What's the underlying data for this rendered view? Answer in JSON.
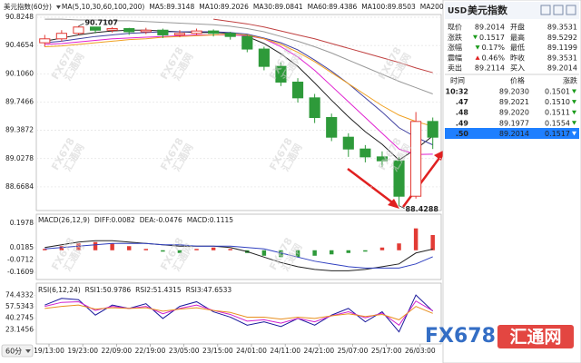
{
  "chart_data": [
    {
      "type": "candlestick",
      "title": "美元指数(60分)",
      "indicator": "MA(5,10,30,60,100,200)",
      "ylim": [
        88.368,
        90.859
      ],
      "yticks": [
        90.8248,
        90.4654,
        {
          "value": 90.106,
          "label": "90.1060"
        },
        89.7466,
        89.3872,
        89.0278,
        88.6684
      ],
      "grid": true,
      "up_color": "#e23b35",
      "down_color": "#2e9a3a",
      "open": [
        90.5,
        90.55,
        90.62,
        90.7,
        90.66,
        90.68,
        90.64,
        90.66,
        90.6,
        90.62,
        90.65,
        90.62,
        90.58,
        90.42,
        90.2,
        90.0,
        89.8,
        89.55,
        89.3,
        89.15,
        89.05,
        89.0,
        88.55,
        89.5
      ],
      "high": [
        90.6,
        90.66,
        90.7107,
        90.7,
        90.7,
        90.69,
        90.69,
        90.68,
        90.66,
        90.68,
        90.67,
        90.64,
        90.6,
        90.45,
        90.25,
        90.05,
        89.85,
        89.6,
        89.35,
        89.2,
        89.12,
        89.05,
        89.62,
        89.55
      ],
      "low": [
        90.45,
        90.52,
        90.6,
        90.62,
        90.63,
        90.6,
        90.61,
        90.56,
        90.57,
        90.6,
        90.58,
        90.54,
        90.38,
        90.15,
        89.95,
        89.74,
        89.48,
        89.25,
        89.05,
        88.98,
        88.92,
        88.4288,
        88.52,
        89.15
      ],
      "close": [
        90.55,
        90.62,
        90.7,
        90.66,
        90.68,
        90.64,
        90.66,
        90.6,
        90.62,
        90.65,
        90.62,
        90.58,
        90.42,
        90.2,
        90.0,
        89.8,
        89.55,
        89.3,
        89.15,
        89.05,
        89.0,
        88.55,
        89.5,
        89.3
      ],
      "annotations": {
        "high_label": "90.7107",
        "low_label": "88.4288"
      },
      "series": [
        {
          "label": "MA5:89.3148",
          "color": "#222222",
          "values": [
            90.52,
            90.56,
            90.6,
            90.63,
            90.65,
            90.66,
            90.66,
            90.65,
            90.64,
            90.63,
            90.63,
            90.62,
            90.58,
            90.49,
            90.36,
            90.2,
            89.99,
            89.77,
            89.56,
            89.37,
            89.21,
            89.01,
            89.15,
            89.3148
          ]
        },
        {
          "label": "MA10:89.2026",
          "color": "#4040a0",
          "values": [
            90.5,
            90.52,
            90.55,
            90.58,
            90.6,
            90.62,
            90.63,
            90.64,
            90.64,
            90.64,
            90.64,
            90.63,
            90.61,
            90.56,
            90.5,
            90.41,
            90.28,
            90.14,
            89.98,
            89.8,
            89.62,
            89.42,
            89.3,
            89.2026
          ]
        },
        {
          "label": "MA30:89.0841",
          "color": "#e020d0",
          "values": [
            90.48,
            90.49,
            90.51,
            90.53,
            90.55,
            90.56,
            90.57,
            90.58,
            90.59,
            90.6,
            90.6,
            90.6,
            90.59,
            90.55,
            90.45,
            90.32,
            90.15,
            89.95,
            89.75,
            89.55,
            89.35,
            89.15,
            89.08,
            89.0841
          ]
        },
        {
          "label": "MA60:89.4386",
          "color": "#f0a020",
          "values": [
            90.45,
            90.46,
            90.48,
            90.5,
            90.52,
            90.54,
            90.55,
            90.57,
            90.58,
            90.59,
            90.6,
            90.61,
            90.6,
            90.55,
            90.48,
            90.38,
            90.26,
            90.12,
            89.98,
            89.84,
            89.7,
            89.58,
            89.5,
            89.4386
          ]
        },
        {
          "label": "MA100:89.8503",
          "color": "#999999",
          "values": [
            90.8,
            90.8,
            90.79,
            90.79,
            90.78,
            90.78,
            90.77,
            90.76,
            90.75,
            90.74,
            90.73,
            90.71,
            90.68,
            90.64,
            90.58,
            90.52,
            90.45,
            90.37,
            90.28,
            90.19,
            90.1,
            90.01,
            89.93,
            89.8503
          ]
        },
        {
          "label": "MA200",
          "color": "#c04040",
          "values": [
            null,
            null,
            null,
            null,
            null,
            null,
            null,
            null,
            null,
            null,
            90.8,
            90.77,
            90.74,
            90.7,
            90.65,
            90.6,
            90.55,
            90.49,
            90.43,
            90.37,
            90.31,
            90.25,
            90.18,
            90.12
          ]
        }
      ]
    },
    {
      "type": "macd",
      "title": "MACD(26,12,9)",
      "ylim": [
        -0.214,
        0.264
      ],
      "yticks": [
        0.1978,
        0.0185,
        -0.0712,
        -0.1609
      ],
      "histogram": {
        "label": "MACD:0.1115",
        "label_color": "#d020d0",
        "up_color": "#e23b35",
        "down_color": "#2e9a3a",
        "values": [
          0.01,
          0.03,
          0.05,
          0.06,
          0.05,
          0.03,
          0.01,
          -0.01,
          -0.02,
          0.01,
          0.02,
          0.01,
          -0.02,
          -0.04,
          -0.05,
          -0.05,
          -0.04,
          -0.03,
          -0.02,
          -0.01,
          0.02,
          0.05,
          0.16,
          0.1115
        ]
      },
      "series": [
        {
          "label": "DIFF:0.0082",
          "color": "#222222",
          "values": [
            0.02,
            0.04,
            0.06,
            0.07,
            0.07,
            0.06,
            0.05,
            0.04,
            0.03,
            0.03,
            0.03,
            0.02,
            -0.01,
            -0.05,
            -0.09,
            -0.12,
            -0.14,
            -0.15,
            -0.15,
            -0.14,
            -0.12,
            -0.1,
            -0.02,
            0.0082
          ]
        },
        {
          "label": "DEA:-0.0476",
          "color": "#3040c0",
          "values": [
            0.01,
            0.02,
            0.03,
            0.04,
            0.05,
            0.05,
            0.05,
            0.04,
            0.04,
            0.03,
            0.03,
            0.03,
            0.02,
            0.01,
            -0.02,
            -0.05,
            -0.08,
            -0.1,
            -0.12,
            -0.13,
            -0.13,
            -0.13,
            -0.1,
            -0.0476
          ]
        }
      ]
    },
    {
      "type": "line",
      "title": "RSI(6,12,24)",
      "ylim": [
        2,
        90
      ],
      "yticks": [
        74.4332,
        57.5343,
        40.2745,
        23.1456
      ],
      "x_labels": [
        "19/13:00",
        "19/23:00",
        "22/09:00",
        "22/19:00",
        "23/05:00",
        "23/15:00",
        "24/01:00",
        "24/11:00",
        "24/21:00",
        "25/07:00",
        "25/17:00",
        "26/03:00"
      ],
      "series": [
        {
          "label": "RSI1:50.9786",
          "color": "#1a1a9c",
          "values": [
            60,
            70,
            68,
            45,
            60,
            55,
            62,
            40,
            58,
            65,
            50,
            42,
            30,
            35,
            28,
            40,
            30,
            45,
            55,
            35,
            50,
            20,
            75,
            50.9786
          ]
        },
        {
          "label": "RSI2:51.4315",
          "color": "#d020d0",
          "values": [
            58,
            64,
            65,
            52,
            58,
            55,
            58,
            47,
            55,
            60,
            52,
            46,
            36,
            38,
            33,
            40,
            35,
            44,
            50,
            41,
            48,
            30,
            66,
            51.4315
          ]
        },
        {
          "label": "RSI3:47.6533",
          "color": "#e89020",
          "values": [
            55,
            58,
            60,
            54,
            56,
            55,
            56,
            51,
            54,
            56,
            52,
            49,
            42,
            42,
            39,
            42,
            40,
            44,
            47,
            43,
            46,
            38,
            58,
            47.6533
          ]
        }
      ]
    }
  ],
  "period_selector": "60分",
  "watermark": {
    "brand": "FX678",
    "cn": "汇通网"
  },
  "quote_panel": {
    "symbol": "USD",
    "name": "美元指数",
    "rows": [
      [
        "现价",
        "89.2014",
        "开盘",
        "89.3531"
      ],
      [
        "涨跌",
        "0.1517",
        "最高",
        "89.5292"
      ],
      [
        "涨幅",
        "0.17%",
        "最低",
        "89.1199"
      ],
      [
        "震幅",
        "0.46%",
        "昨收",
        "89.3531"
      ],
      [
        "卖出",
        "89.2114",
        "买入",
        "89.2014"
      ]
    ],
    "trades_header": [
      "时间",
      "价格",
      "涨跌"
    ],
    "trades": [
      [
        "10:32",
        "89.2030",
        "0.1501"
      ],
      [
        ".47",
        "89.2021",
        "0.1510"
      ],
      [
        ".48",
        "89.2020",
        "0.1511"
      ],
      [
        ".49",
        "89.1977",
        "0.1554"
      ],
      [
        ".50",
        "89.2014",
        "0.1517"
      ]
    ]
  }
}
